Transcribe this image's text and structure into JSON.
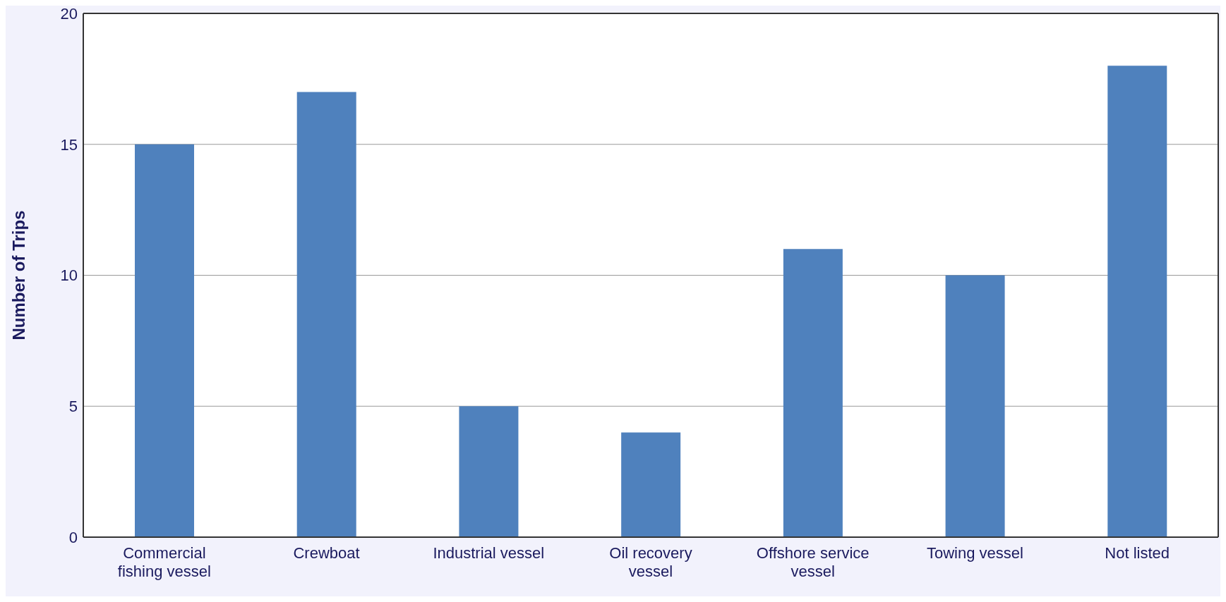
{
  "chart_data": {
    "type": "bar",
    "ylabel": "Number of Trips",
    "categories": [
      "Commercial fishing vessel",
      "Crewboat",
      "Industrial vessel",
      "Oil recovery vessel",
      "Offshore service vessel",
      "Towing vessel",
      "Not listed"
    ],
    "values": [
      15,
      17,
      5,
      4,
      11,
      10,
      18
    ],
    "color": "#4f81bd",
    "ylim": [
      0,
      20
    ],
    "yticks": [
      0,
      5,
      10,
      15,
      20
    ],
    "grid": "y",
    "legend": false
  }
}
